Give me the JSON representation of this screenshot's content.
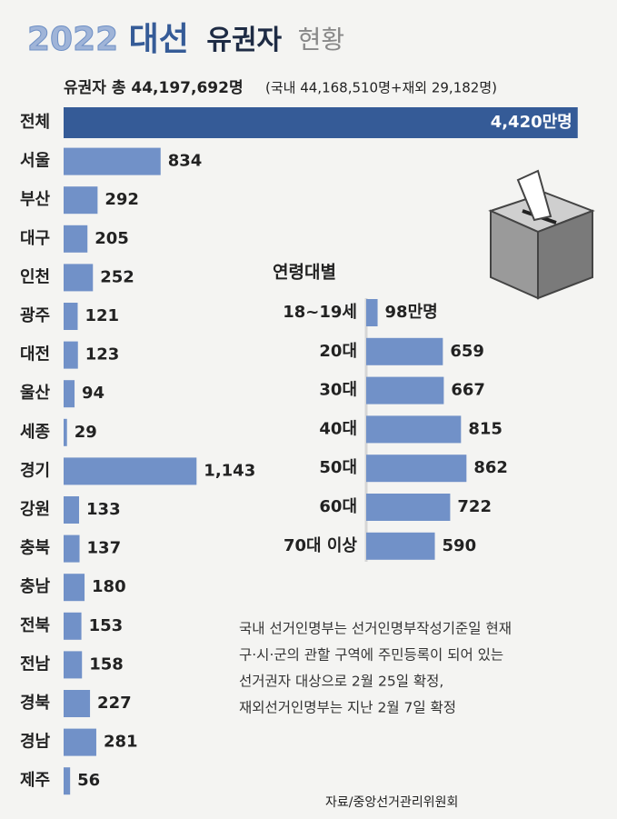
{
  "header": {
    "title_parts": [
      "2022",
      "대선",
      "유권자",
      "현황"
    ],
    "total": "유권자 총 44,197,692명",
    "breakdown": "(국내 44,168,510명+재외 29,182명)"
  },
  "chart_data": [
    {
      "type": "bar",
      "orientation": "horizontal",
      "categories": [
        "전체",
        "서울",
        "부산",
        "대구",
        "인천",
        "광주",
        "대전",
        "울산",
        "세종",
        "경기",
        "강원",
        "충북",
        "충남",
        "전북",
        "전남",
        "경북",
        "경남",
        "제주"
      ],
      "values": [
        4420,
        834,
        292,
        205,
        252,
        121,
        123,
        94,
        29,
        1143,
        133,
        137,
        180,
        153,
        158,
        227,
        281,
        56
      ],
      "value_labels": [
        "4,420만명",
        "834",
        "292",
        "205",
        "252",
        "121",
        "123",
        "94",
        "29",
        "1,143",
        "133",
        "137",
        "180",
        "153",
        "158",
        "227",
        "281",
        "56"
      ],
      "colors": [
        "#355b97",
        "#7191c8"
      ]
    },
    {
      "type": "bar",
      "orientation": "horizontal",
      "title": "연령대별",
      "categories": [
        "18~19세",
        "20대",
        "30대",
        "40대",
        "50대",
        "60대",
        "70대 이상"
      ],
      "values": [
        98,
        659,
        667,
        815,
        862,
        722,
        590
      ],
      "value_labels": [
        "98만명",
        "659",
        "667",
        "815",
        "862",
        "722",
        "590"
      ],
      "color": "#7191c8"
    }
  ],
  "note": [
    "국내 선거인명부는 선거인명부작성기준일 현재",
    "구·시·군의 관할 구역에 주민등록이 되어 있는",
    "선거권자 대상으로 2월 25일 확정,",
    "재외선거인명부는 지난 2월 7일 확정"
  ],
  "source": "자료/중앙선거관리위원회"
}
